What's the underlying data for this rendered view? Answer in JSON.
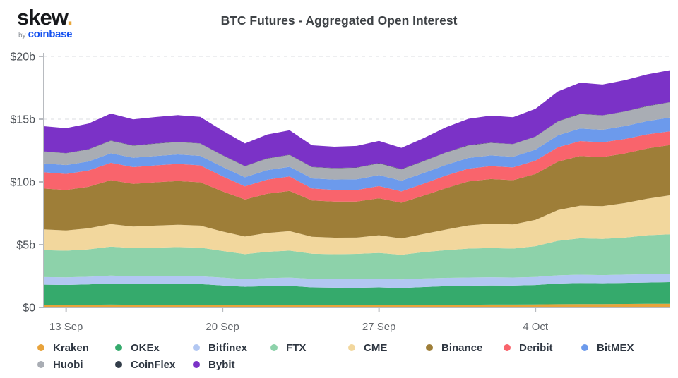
{
  "logo": {
    "brand": "skew",
    "dot": ".",
    "by": "by",
    "coinbase": "coinbase"
  },
  "chart_data": {
    "type": "area",
    "stacked": true,
    "title": "BTC Futures - Aggregated Open Interest",
    "unit": "USD billions",
    "ylim": [
      0,
      20
    ],
    "grid": "dashed-horizontal",
    "legend_position": "bottom",
    "axis_color": "#b8bbc0",
    "grid_color": "#e2e4e7",
    "x": [
      "12 Sep",
      "13 Sep",
      "14 Sep",
      "15 Sep",
      "16 Sep",
      "17 Sep",
      "18 Sep",
      "19 Sep",
      "20 Sep",
      "21 Sep",
      "22 Sep",
      "23 Sep",
      "24 Sep",
      "25 Sep",
      "26 Sep",
      "27 Sep",
      "28 Sep",
      "29 Sep",
      "30 Sep",
      "1 Oct",
      "2 Oct",
      "3 Oct",
      "4 Oct",
      "5 Oct",
      "6 Oct",
      "7 Oct",
      "8 Oct",
      "9 Oct",
      "10 Oct"
    ],
    "x_tick_labels": [
      "13 Sep",
      "20 Sep",
      "27 Sep",
      "4 Oct"
    ],
    "x_tick_positions": [
      1,
      8,
      15,
      22
    ],
    "y_tick_values": [
      0,
      5,
      10,
      15,
      20
    ],
    "y_tick_labels": [
      "$0",
      "$5b",
      "$10b",
      "$15b",
      "$20b"
    ],
    "series": [
      {
        "name": "Kraken",
        "color": "#e8a33b",
        "values": [
          0.22,
          0.22,
          0.22,
          0.23,
          0.22,
          0.22,
          0.22,
          0.22,
          0.21,
          0.2,
          0.21,
          0.21,
          0.2,
          0.2,
          0.2,
          0.2,
          0.2,
          0.21,
          0.22,
          0.22,
          0.23,
          0.23,
          0.24,
          0.26,
          0.27,
          0.27,
          0.28,
          0.29,
          0.3
        ]
      },
      {
        "name": "OKEx",
        "color": "#35aa6c",
        "values": [
          1.6,
          1.58,
          1.62,
          1.68,
          1.64,
          1.65,
          1.66,
          1.65,
          1.55,
          1.45,
          1.5,
          1.52,
          1.4,
          1.38,
          1.37,
          1.4,
          1.35,
          1.42,
          1.48,
          1.52,
          1.53,
          1.52,
          1.55,
          1.65,
          1.68,
          1.66,
          1.68,
          1.7,
          1.72
        ]
      },
      {
        "name": "Bitfinex",
        "color": "#b2c7f2",
        "values": [
          0.6,
          0.6,
          0.61,
          0.63,
          0.62,
          0.62,
          0.63,
          0.62,
          0.62,
          0.6,
          0.63,
          0.65,
          0.68,
          0.68,
          0.7,
          0.7,
          0.68,
          0.68,
          0.66,
          0.65,
          0.65,
          0.64,
          0.64,
          0.65,
          0.66,
          0.65,
          0.66,
          0.66,
          0.66
        ]
      },
      {
        "name": "FTX",
        "color": "#8dd2aa",
        "values": [
          2.15,
          2.12,
          2.18,
          2.3,
          2.25,
          2.28,
          2.3,
          2.28,
          2.12,
          2.0,
          2.1,
          2.15,
          2.0,
          1.98,
          2.0,
          2.05,
          1.97,
          2.1,
          2.2,
          2.3,
          2.32,
          2.3,
          2.45,
          2.75,
          2.9,
          2.88,
          2.95,
          3.1,
          3.15
        ]
      },
      {
        "name": "CME",
        "color": "#f2d79d",
        "values": [
          1.65,
          1.62,
          1.68,
          1.8,
          1.72,
          1.75,
          1.78,
          1.75,
          1.55,
          1.4,
          1.5,
          1.55,
          1.35,
          1.32,
          1.3,
          1.4,
          1.3,
          1.45,
          1.65,
          1.85,
          1.95,
          1.93,
          2.1,
          2.45,
          2.6,
          2.62,
          2.75,
          2.92,
          3.1
        ]
      },
      {
        "name": "Binance",
        "color": "#9e7e38",
        "values": [
          3.25,
          3.22,
          3.3,
          3.5,
          3.4,
          3.45,
          3.48,
          3.45,
          3.2,
          2.95,
          3.12,
          3.2,
          2.9,
          2.88,
          2.87,
          2.95,
          2.85,
          3.05,
          3.3,
          3.5,
          3.55,
          3.52,
          3.65,
          3.85,
          3.95,
          3.9,
          3.95,
          4.0,
          4.0
        ]
      },
      {
        "name": "Deribit",
        "color": "#f9646c",
        "values": [
          1.3,
          1.28,
          1.3,
          1.38,
          1.33,
          1.35,
          1.36,
          1.35,
          1.2,
          1.05,
          1.12,
          1.15,
          0.95,
          0.93,
          0.92,
          0.97,
          0.9,
          0.95,
          1.0,
          1.02,
          1.03,
          1.02,
          1.06,
          1.15,
          1.2,
          1.18,
          1.15,
          1.12,
          1.1
        ]
      },
      {
        "name": "BitMEX",
        "color": "#6c9aec",
        "values": [
          0.7,
          0.7,
          0.72,
          0.76,
          0.74,
          0.75,
          0.76,
          0.76,
          0.74,
          0.72,
          0.76,
          0.78,
          0.8,
          0.82,
          0.85,
          0.87,
          0.85,
          0.85,
          0.85,
          0.85,
          0.85,
          0.85,
          0.88,
          0.95,
          1.0,
          1.0,
          1.03,
          1.06,
          1.1
        ]
      },
      {
        "name": "Huobi",
        "color": "#a9adb4",
        "values": [
          0.95,
          0.94,
          0.96,
          1.0,
          0.97,
          0.98,
          0.99,
          0.98,
          0.93,
          0.88,
          0.92,
          0.94,
          0.9,
          0.9,
          0.92,
          0.94,
          0.9,
          0.94,
          0.98,
          1.0,
          1.0,
          1.0,
          1.03,
          1.1,
          1.15,
          1.13,
          1.15,
          1.18,
          1.2
        ]
      },
      {
        "name": "CoinFlex",
        "color": "#333e4a",
        "values": [
          0.02,
          0.02,
          0.02,
          0.02,
          0.02,
          0.02,
          0.02,
          0.02,
          0.02,
          0.02,
          0.02,
          0.02,
          0.02,
          0.02,
          0.02,
          0.02,
          0.02,
          0.02,
          0.02,
          0.02,
          0.02,
          0.02,
          0.02,
          0.02,
          0.02,
          0.02,
          0.02,
          0.02,
          0.02
        ]
      },
      {
        "name": "Bybit",
        "color": "#7b32c7",
        "values": [
          2.0,
          1.98,
          2.04,
          2.15,
          2.08,
          2.1,
          2.12,
          2.1,
          1.95,
          1.8,
          1.9,
          1.95,
          1.72,
          1.7,
          1.72,
          1.77,
          1.7,
          1.82,
          2.0,
          2.1,
          2.15,
          2.12,
          2.2,
          2.38,
          2.48,
          2.45,
          2.48,
          2.52,
          2.55
        ]
      }
    ]
  }
}
